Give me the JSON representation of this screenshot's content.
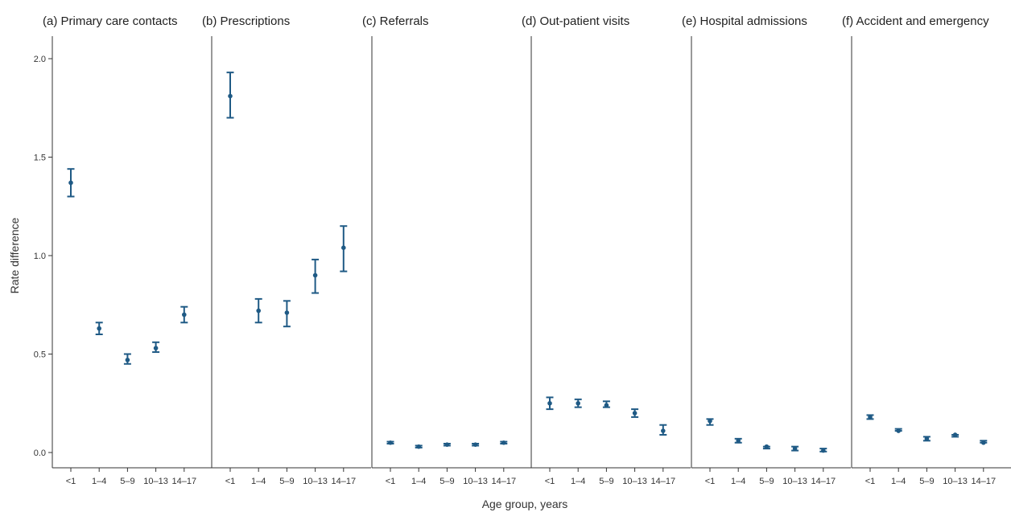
{
  "chart_data": {
    "type": "scatter",
    "ylabel": "Rate difference",
    "xlabel": "Age group, years",
    "ylim": [
      0.0,
      2.0
    ],
    "y_ticks": [
      "0.0",
      "0.5",
      "1.0",
      "1.5",
      "2.0"
    ],
    "categories": [
      "<1",
      "1–4",
      "5–9",
      "10–13",
      "14–17"
    ],
    "grid": false,
    "marker_color": "#1f5a85",
    "panels": [
      {
        "title": "(a)  Primary care contacts",
        "values": [
          1.37,
          0.63,
          0.47,
          0.53,
          0.7
        ],
        "lower": [
          1.3,
          0.6,
          0.45,
          0.51,
          0.66
        ],
        "upper": [
          1.44,
          0.66,
          0.5,
          0.56,
          0.74
        ]
      },
      {
        "title": "(b)  Prescriptions",
        "values": [
          1.81,
          0.72,
          0.71,
          0.9,
          1.04
        ],
        "lower": [
          1.7,
          0.66,
          0.64,
          0.81,
          0.92
        ],
        "upper": [
          1.93,
          0.78,
          0.77,
          0.98,
          1.15
        ]
      },
      {
        "title": "(c)  Referrals",
        "values": [
          0.05,
          0.03,
          0.04,
          0.04,
          0.05
        ],
        "lower": [
          0.045,
          0.025,
          0.035,
          0.035,
          0.045
        ],
        "upper": [
          0.055,
          0.035,
          0.045,
          0.045,
          0.055
        ]
      },
      {
        "title": "(d)  Out-patient visits",
        "values": [
          0.25,
          0.25,
          0.24,
          0.2,
          0.11
        ],
        "lower": [
          0.22,
          0.23,
          0.23,
          0.18,
          0.09
        ],
        "upper": [
          0.28,
          0.27,
          0.26,
          0.22,
          0.14
        ]
      },
      {
        "title": "(e)  Hospital admissions",
        "values": [
          0.16,
          0.06,
          0.03,
          0.02,
          0.01
        ],
        "lower": [
          0.14,
          0.05,
          0.02,
          0.01,
          0.005
        ],
        "upper": [
          0.17,
          0.07,
          0.03,
          0.03,
          0.02
        ]
      },
      {
        "title": "(f)  Accident and emergency",
        "values": [
          0.18,
          0.11,
          0.07,
          0.09,
          0.05
        ],
        "lower": [
          0.17,
          0.11,
          0.06,
          0.08,
          0.05
        ],
        "upper": [
          0.19,
          0.12,
          0.08,
          0.09,
          0.06
        ]
      }
    ]
  }
}
